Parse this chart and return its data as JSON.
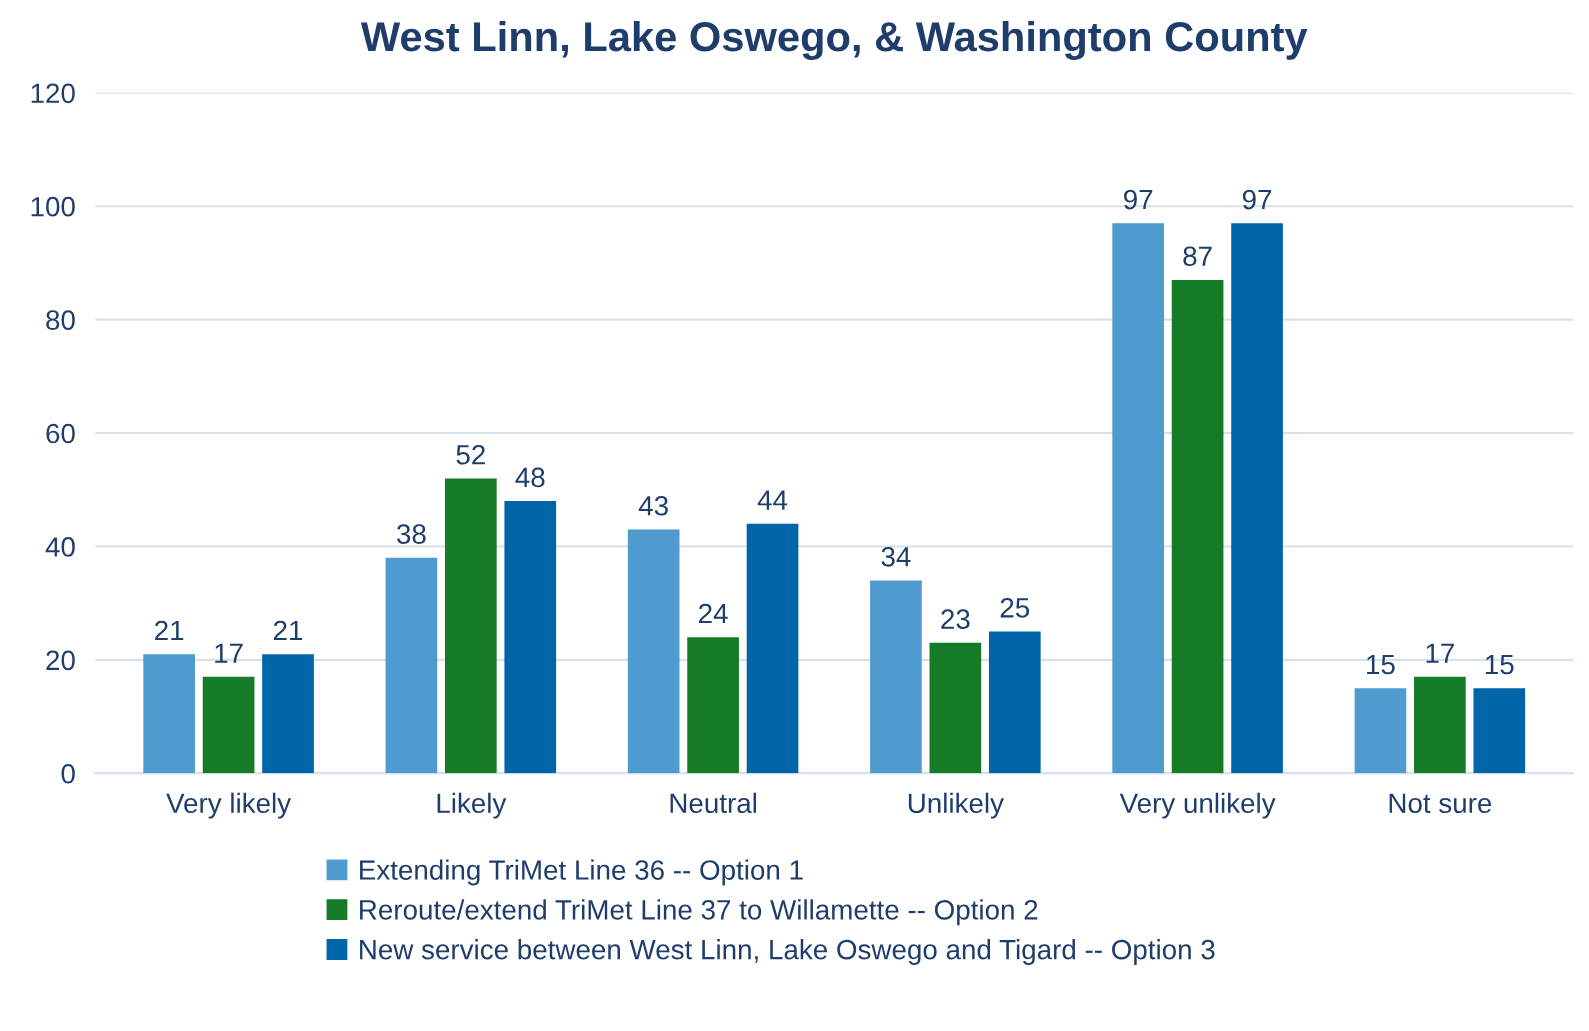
{
  "chart_data": {
    "type": "bar",
    "title": "West Linn, Lake Oswego, & Washington County",
    "categories": [
      "Very likely",
      "Likely",
      "Neutral",
      "Unlikely",
      "Very unlikely",
      "Not sure"
    ],
    "series": [
      {
        "name": "Extending TriMet Line 36 -- Option 1",
        "color": "#4f9bcf",
        "values": [
          21,
          38,
          43,
          34,
          97,
          15
        ]
      },
      {
        "name": "Reroute/extend TriMet Line 37 to Willamette -- Option 2",
        "color": "#157b26",
        "values": [
          17,
          52,
          24,
          23,
          87,
          17
        ]
      },
      {
        "name": "New service between West Linn, Lake Oswego and Tigard -- Option 3",
        "color": "#0065a8",
        "values": [
          21,
          48,
          44,
          25,
          97,
          15
        ]
      }
    ],
    "ylim": [
      0,
      120
    ],
    "yticks": [
      0,
      20,
      40,
      60,
      80,
      100,
      120
    ],
    "grid": "y",
    "legend": "bottom",
    "data_labels": true
  }
}
